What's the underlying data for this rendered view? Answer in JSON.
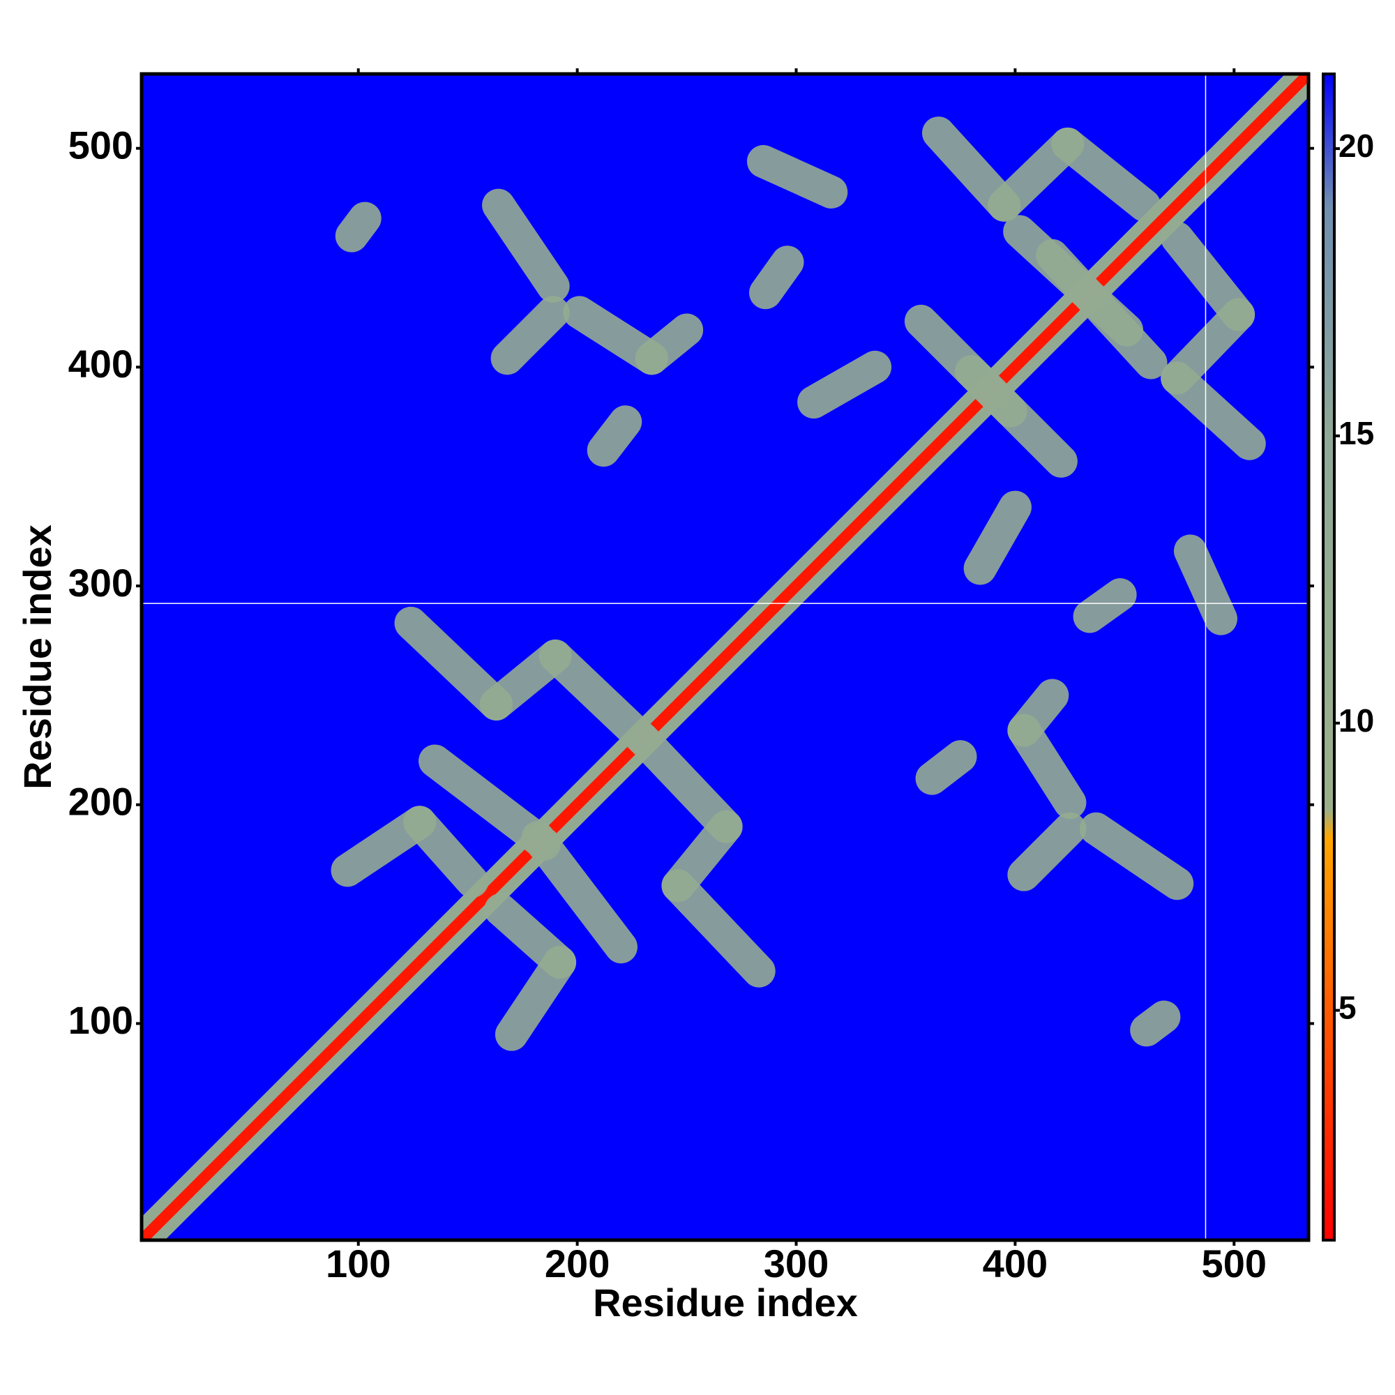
{
  "chart_data": {
    "type": "heatmap",
    "x_label": "Residue index",
    "y_label": "Residue index",
    "xlim": [
      1,
      534
    ],
    "ylim": [
      1,
      534
    ],
    "xticks": [
      100,
      200,
      300,
      400,
      500
    ],
    "yticks": [
      100,
      200,
      300,
      400,
      500
    ],
    "zlim": [
      1,
      21.3
    ],
    "zticks": [
      5,
      10,
      15,
      20
    ],
    "colorscale": [
      [
        1,
        "#ff0000"
      ],
      [
        5,
        "#ff5a00"
      ],
      [
        8,
        "#ffa500"
      ],
      [
        8.5,
        "#9bb08a"
      ],
      [
        15,
        "#8fa898"
      ],
      [
        19,
        "#6f8fb0"
      ],
      [
        21.3,
        "#0000ff"
      ]
    ],
    "symmetric": true,
    "vlines": [
      487
    ],
    "hlines": [
      292
    ],
    "line_color": "#ffffff",
    "features": [
      {
        "x": [
          1,
          534
        ],
        "y": [
          1,
          534
        ],
        "value": 12
      },
      {
        "x": [
          1,
          534
        ],
        "y": [
          1,
          534
        ],
        "value": 2
      },
      {
        "x": [
          124,
          163
        ],
        "y": [
          283,
          246
        ],
        "value": 12
      },
      {
        "x": [
          163,
          190
        ],
        "y": [
          246,
          268
        ],
        "value": 12
      },
      {
        "x": [
          190,
          230
        ],
        "y": [
          268,
          230
        ],
        "value": 12
      },
      {
        "x": [
          135,
          185
        ],
        "y": [
          220,
          182
        ],
        "value": 12
      },
      {
        "x": [
          95,
          128
        ],
        "y": [
          170,
          192
        ],
        "value": 12
      },
      {
        "x": [
          128,
          152
        ],
        "y": [
          192,
          165
        ],
        "value": 12
      },
      {
        "x": [
          365,
          395
        ],
        "y": [
          507,
          474
        ],
        "value": 12
      },
      {
        "x": [
          395,
          424
        ],
        "y": [
          474,
          502
        ],
        "value": 12
      },
      {
        "x": [
          424,
          459
        ],
        "y": [
          502,
          474
        ],
        "value": 12
      },
      {
        "x": [
          402,
          451
        ],
        "y": [
          462,
          417
        ],
        "value": 12
      },
      {
        "x": [
          357,
          398
        ],
        "y": [
          421,
          380
        ],
        "value": 12
      },
      {
        "x": [
          164,
          189
        ],
        "y": [
          474,
          437
        ],
        "value": 12
      },
      {
        "x": [
          201,
          234
        ],
        "y": [
          425,
          404
        ],
        "value": 12
      },
      {
        "x": [
          234,
          250
        ],
        "y": [
          404,
          417
        ],
        "value": 12
      },
      {
        "x": [
          168,
          189
        ],
        "y": [
          404,
          425
        ],
        "value": 12
      },
      {
        "x": [
          285,
          316
        ],
        "y": [
          494,
          480
        ],
        "value": 12
      },
      {
        "x": [
          308,
          336
        ],
        "y": [
          384,
          400
        ],
        "value": 12
      },
      {
        "x": [
          212,
          222
        ],
        "y": [
          362,
          375
        ],
        "value": 12
      },
      {
        "x": [
          97,
          103
        ],
        "y": [
          460,
          468
        ],
        "value": 12
      },
      {
        "x": [
          286,
          296
        ],
        "y": [
          434,
          448
        ],
        "value": 12
      }
    ]
  }
}
